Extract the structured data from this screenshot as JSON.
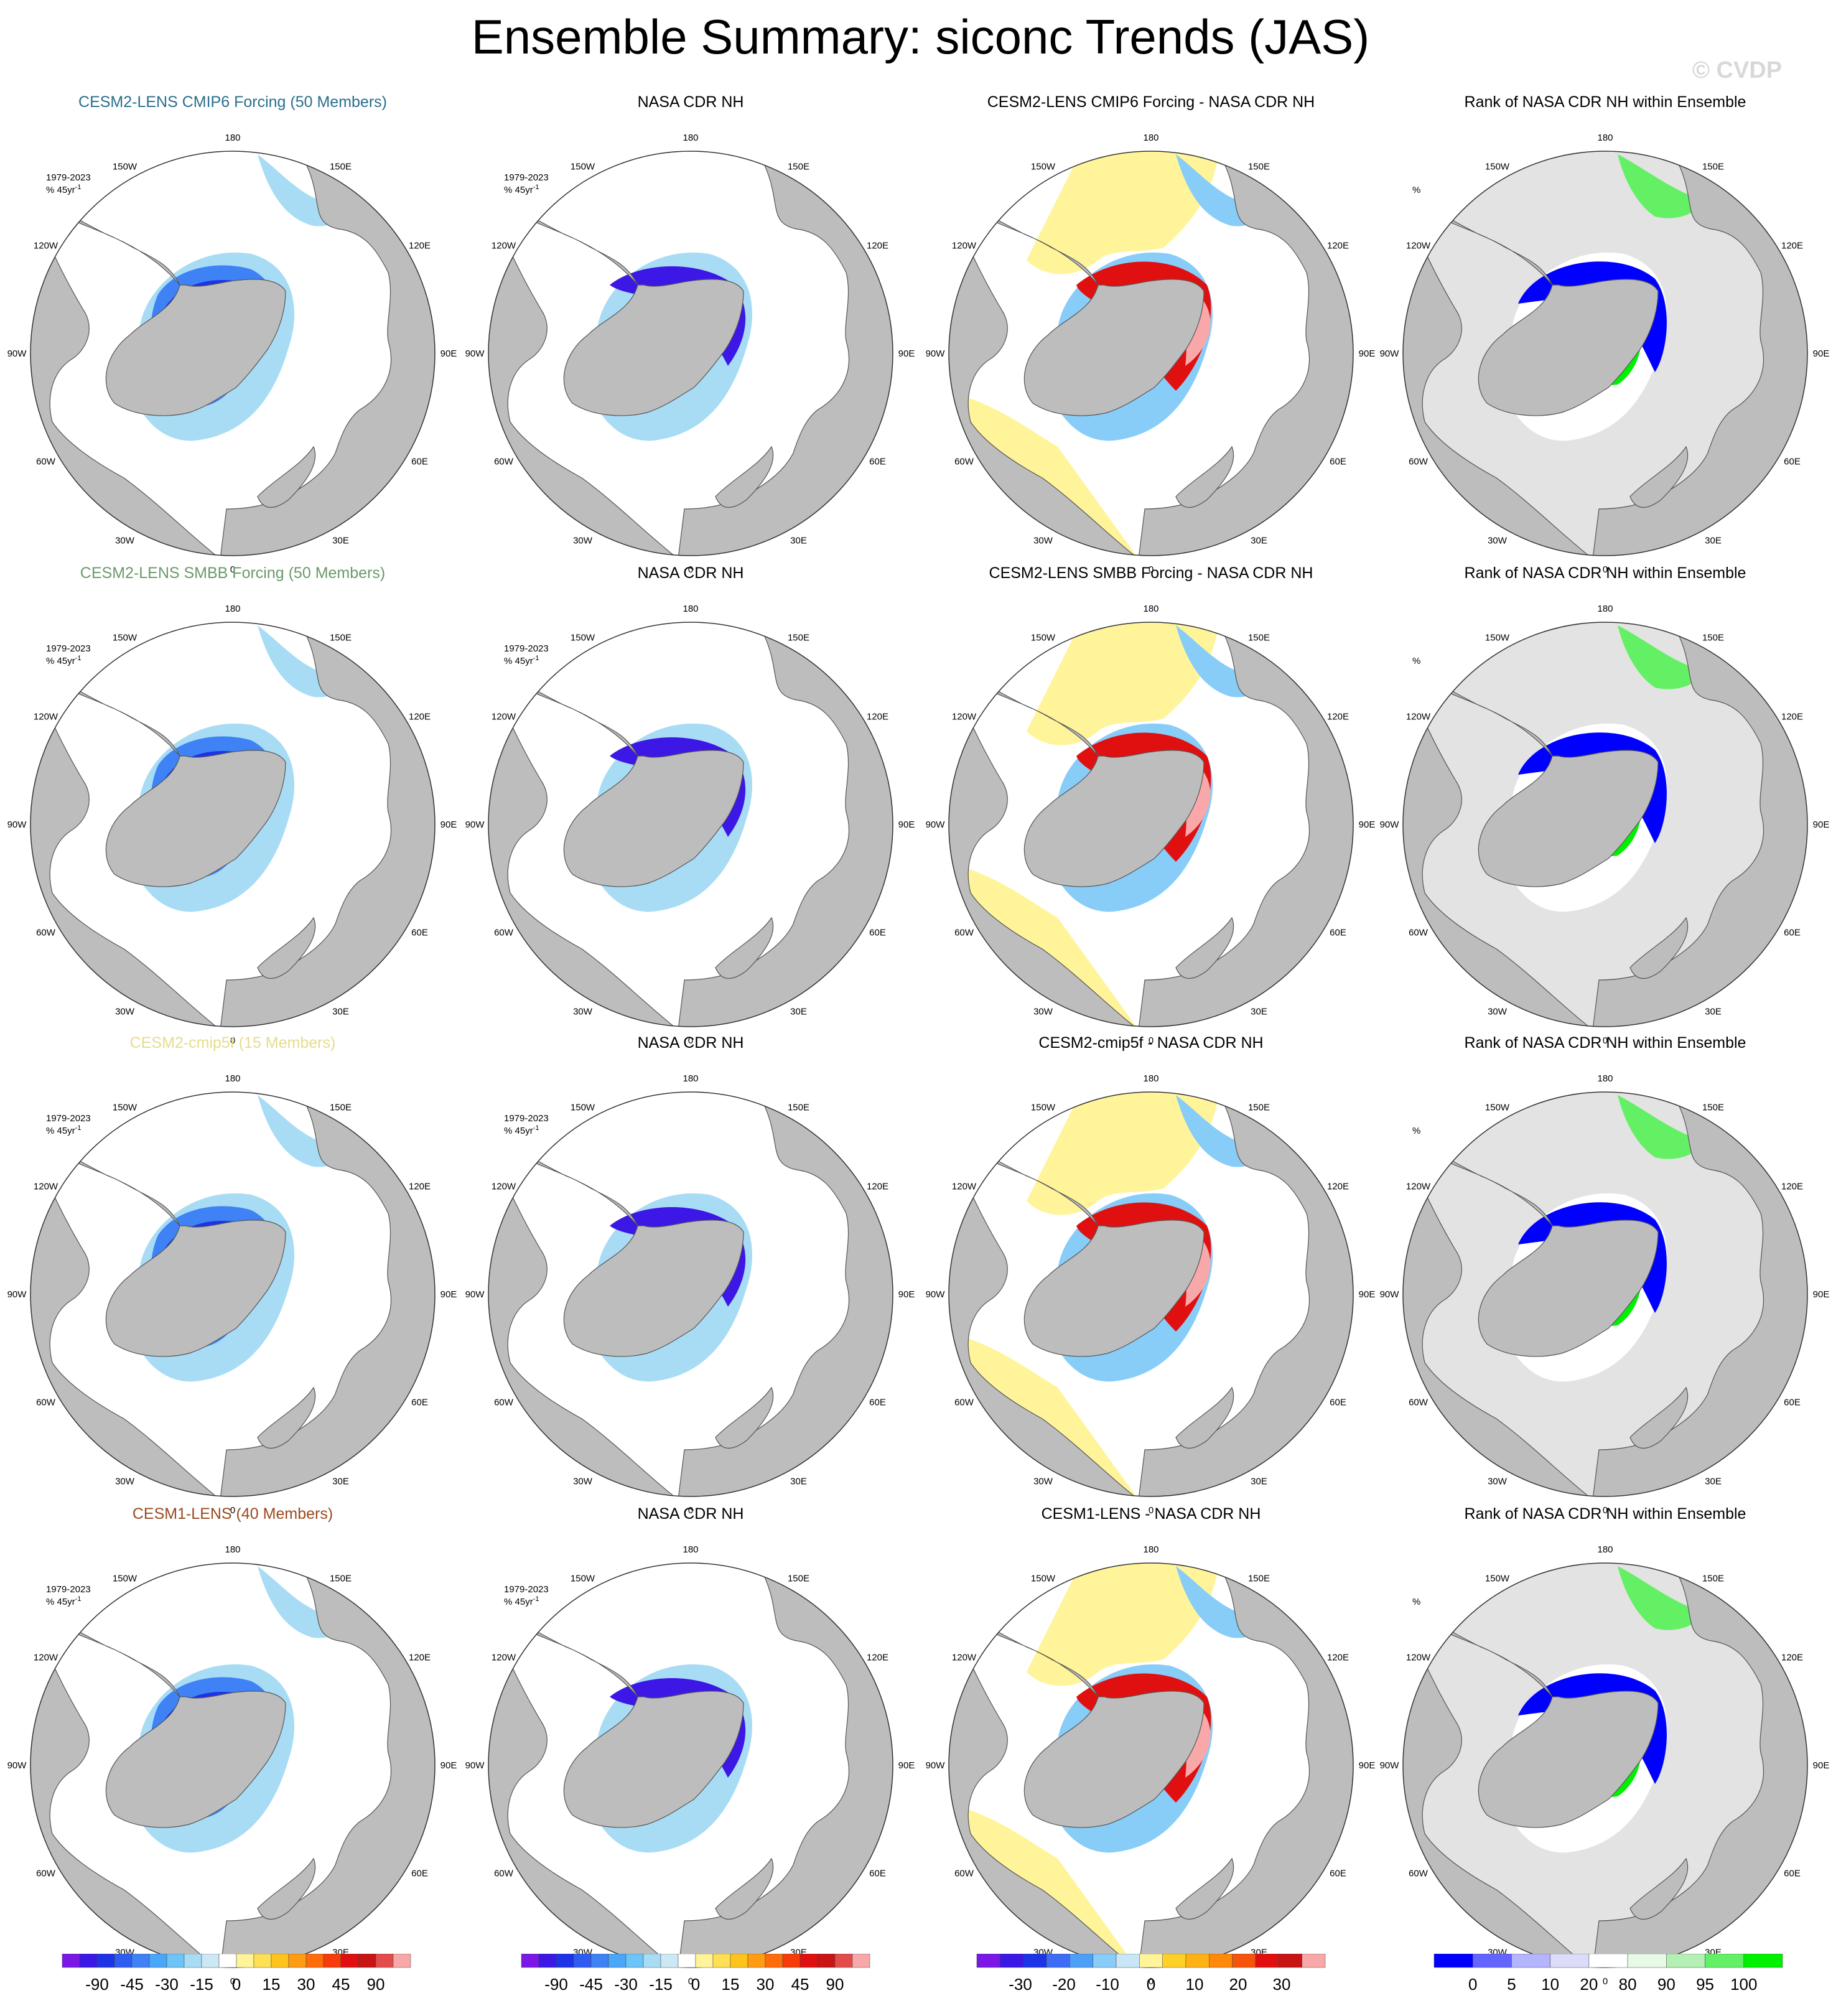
{
  "title": "Ensemble Summary: siconc Trends (JAS)",
  "watermark": "© CVDP",
  "period_label": "1979-2023",
  "units_label_prefix": "% 45yr",
  "units_label_exp": "-1",
  "rank_units": "%",
  "longitude_labels": [
    "180",
    "150E",
    "120E",
    "90E",
    "60E",
    "30E",
    "0",
    "30W",
    "60W",
    "90W",
    "120W",
    "150W"
  ],
  "rows": [
    {
      "ensemble_title": "CESM2-LENS CMIP6 Forcing (50 Members)",
      "ensemble_color": "#2a6f8c",
      "obs_title": "NASA CDR NH",
      "diff_title": "CESM2-LENS CMIP6 Forcing - NASA CDR NH",
      "rank_title": "Rank of NASA CDR NH within Ensemble"
    },
    {
      "ensemble_title": "CESM2-LENS SMBB Forcing (50 Members)",
      "ensemble_color": "#6a9a6a",
      "obs_title": "NASA CDR NH",
      "diff_title": "CESM2-LENS SMBB Forcing - NASA CDR NH",
      "rank_title": "Rank of NASA CDR NH within Ensemble"
    },
    {
      "ensemble_title": "CESM2-cmip5f (15 Members)",
      "ensemble_color": "#e6dc8c",
      "obs_title": "NASA CDR NH",
      "diff_title": "CESM2-cmip5f - NASA CDR NH",
      "rank_title": "Rank of NASA CDR NH within Ensemble"
    },
    {
      "ensemble_title": "CESM1-LENS (40 Members)",
      "ensemble_color": "#9a4a1e",
      "obs_title": "NASA CDR NH",
      "diff_title": "CESM1-LENS - NASA CDR NH",
      "rank_title": "Rank of NASA CDR NH within Ensemble"
    }
  ],
  "colors": {
    "land": "#bdbdbd",
    "rank_background": "#e3e3e3",
    "trend_palette": [
      "#7b18e6",
      "#3c17e6",
      "#1c34e6",
      "#2e5cf0",
      "#3e82f5",
      "#49a7f8",
      "#6cc4f8",
      "#a8dcf5",
      "#cde8f5",
      "#ffffff",
      "#fff49a",
      "#ffe054",
      "#ffc41c",
      "#ff9c14",
      "#ff6c0a",
      "#f53c0a",
      "#e01010",
      "#c81414",
      "#e44c4c",
      "#f8a8a8"
    ],
    "diff_palette": [
      "#7b18e6",
      "#3c17e6",
      "#1c34e6",
      "#3e6cf5",
      "#4da0f8",
      "#88ccf8",
      "#c8e6f5",
      "#fff49a",
      "#ffd028",
      "#ffb214",
      "#ff8a0a",
      "#f5540a",
      "#e01010",
      "#c81414",
      "#f8a8a8"
    ],
    "rank_palette": [
      "#0000ff",
      "#6464ff",
      "#b4b4ff",
      "#dcdcfa",
      "#ffffff",
      "#e6fae6",
      "#b4f0b4",
      "#64f064",
      "#00f000"
    ]
  },
  "colorbars": [
    {
      "kind": "trend",
      "ticks": [
        "-90",
        "-45",
        "-30",
        "-15",
        "0",
        "15",
        "30",
        "45",
        "90"
      ]
    },
    {
      "kind": "trend",
      "ticks": [
        "-90",
        "-45",
        "-30",
        "-15",
        "0",
        "15",
        "30",
        "45",
        "90"
      ]
    },
    {
      "kind": "diff",
      "ticks": [
        "-30",
        "-20",
        "-10",
        "0",
        "10",
        "20",
        "30"
      ]
    },
    {
      "kind": "rank",
      "ticks": [
        "0",
        "5",
        "10",
        "20",
        "80",
        "90",
        "95",
        "100"
      ]
    }
  ]
}
